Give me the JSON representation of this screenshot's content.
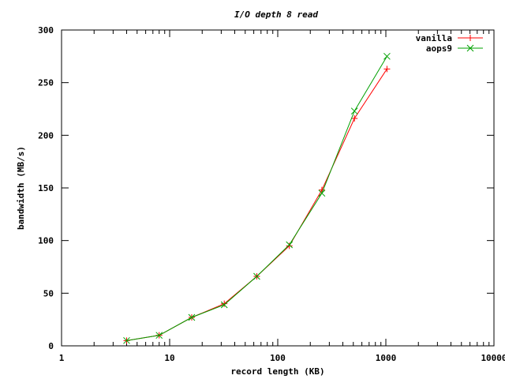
{
  "chart_data": {
    "type": "line",
    "title": "I/O depth 8 read",
    "xlabel": "record length (KB)",
    "ylabel": "bandwidth (MB/s)",
    "x_scale": "log",
    "xlim": [
      1,
      10000
    ],
    "ylim": [
      0,
      300
    ],
    "x_ticks": [
      1,
      10,
      100,
      1000,
      10000
    ],
    "y_ticks": [
      0,
      50,
      100,
      150,
      200,
      250,
      300
    ],
    "grid": false,
    "legend_position": "top-right",
    "x": [
      4,
      8,
      16,
      32,
      64,
      128,
      256,
      512,
      1024
    ],
    "series": [
      {
        "name": "vanilla",
        "color": "#ff0000",
        "marker": "plus",
        "values": [
          5,
          10,
          27,
          40,
          66,
          95,
          148,
          216,
          263
        ]
      },
      {
        "name": "aops9",
        "color": "#00a000",
        "marker": "cross",
        "values": [
          5,
          10,
          27,
          39,
          66,
          96,
          145,
          223,
          275
        ]
      }
    ]
  }
}
